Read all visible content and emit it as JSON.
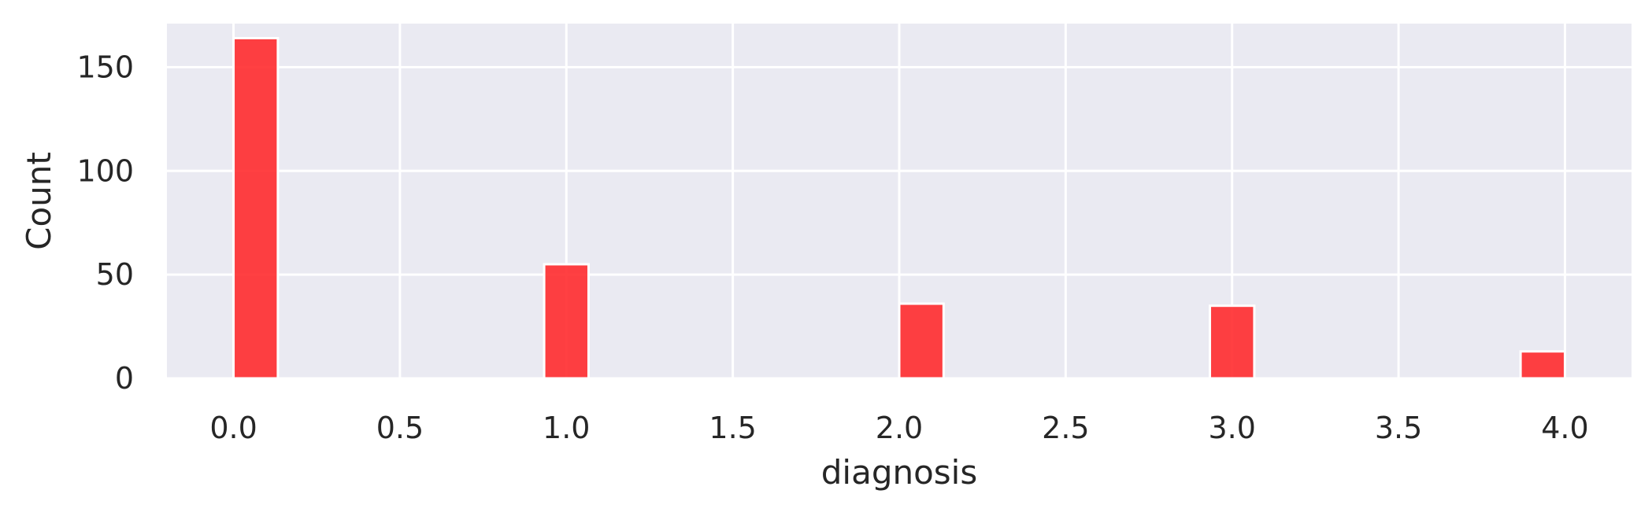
{
  "chart_data": {
    "type": "bar",
    "xlabel": "diagnosis",
    "ylabel": "Count",
    "xlim": [
      -0.2,
      4.2
    ],
    "ylim": [
      0,
      171
    ],
    "x_ticks": [
      "0.0",
      "0.5",
      "1.0",
      "1.5",
      "2.0",
      "2.5",
      "3.0",
      "3.5",
      "4.0"
    ],
    "x_tick_values": [
      0.0,
      0.5,
      1.0,
      1.5,
      2.0,
      2.5,
      3.0,
      3.5,
      4.0
    ],
    "y_ticks": [
      "0",
      "50",
      "100",
      "150"
    ],
    "y_tick_values": [
      0,
      50,
      100,
      150
    ],
    "bars": [
      {
        "x_start": 0.0,
        "x_end": 0.1333,
        "value": 164
      },
      {
        "x_start": 0.9333,
        "x_end": 1.0667,
        "value": 55
      },
      {
        "x_start": 2.0,
        "x_end": 2.1333,
        "value": 36
      },
      {
        "x_start": 2.9333,
        "x_end": 3.0667,
        "value": 35
      },
      {
        "x_start": 3.8667,
        "x_end": 4.0,
        "value": 13
      }
    ],
    "grid": true,
    "colors": {
      "bar_fill": "#ff2b2e",
      "plot_background": "#eaeaf2",
      "grid": "#ffffff",
      "text": "#262626"
    }
  }
}
